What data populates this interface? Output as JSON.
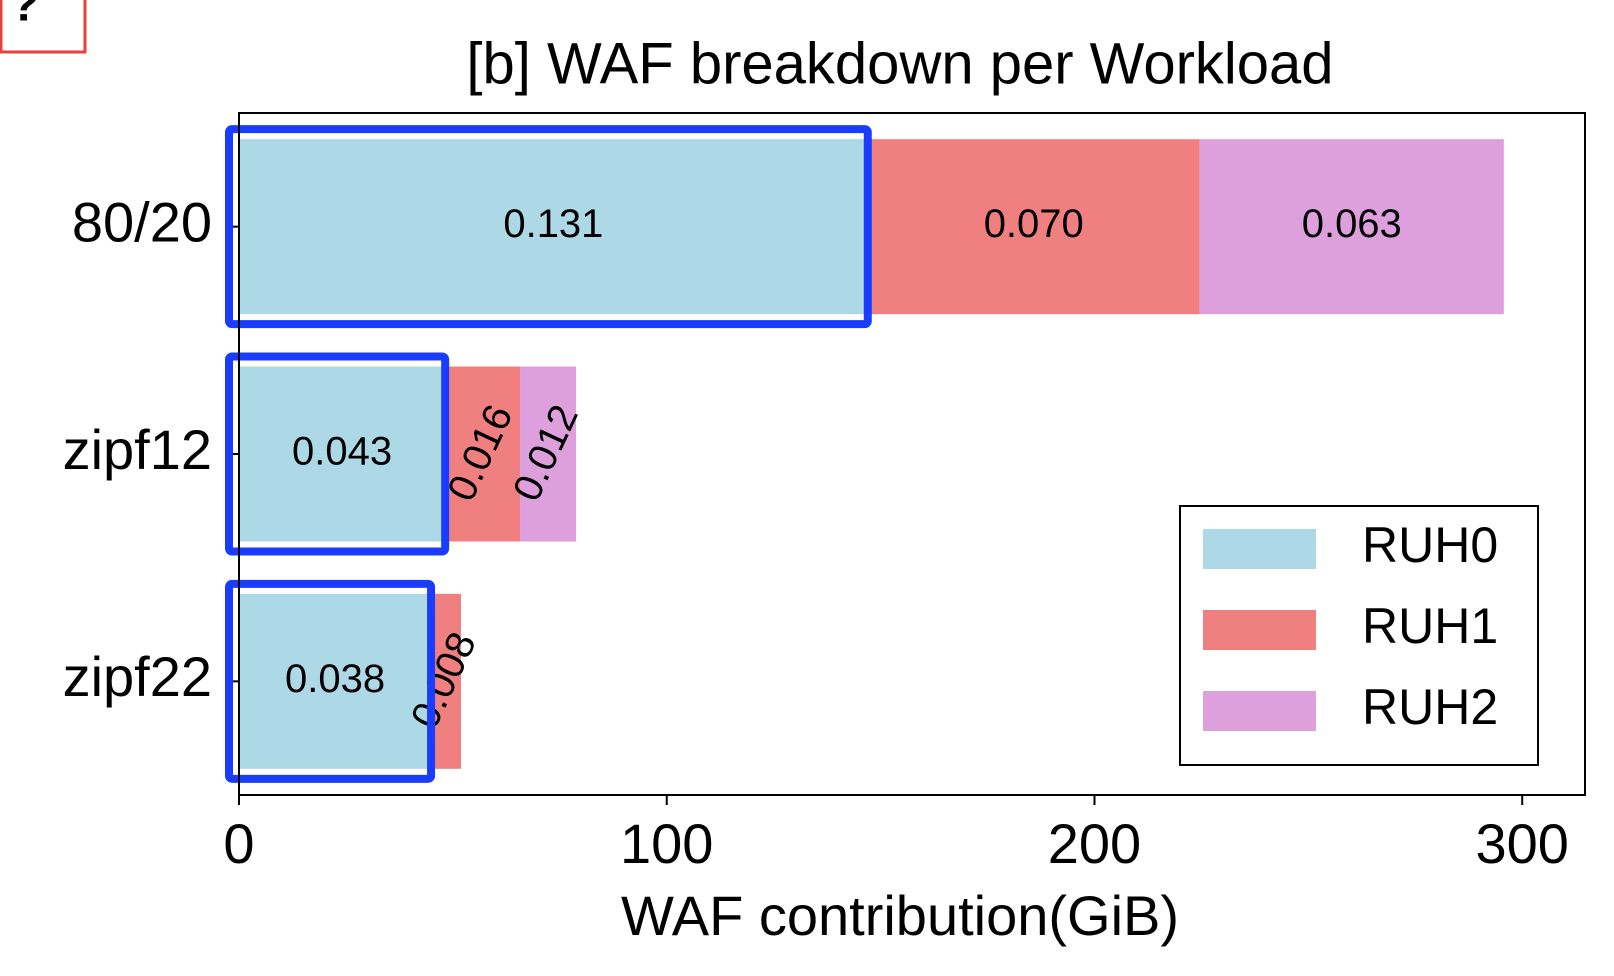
{
  "corner_label": "?",
  "chart_data": {
    "type": "stacked-barh",
    "title": "[b] WAF breakdown per Workload",
    "x_label": "WAF contribution(GiB)",
    "categories": [
      "80/20",
      "zipf12",
      "zipf22"
    ],
    "series": [
      {
        "name": "RUH0",
        "color": "#add8e6",
        "values": [
          147,
          48.2,
          44.9
        ],
        "bar_labels": [
          "0.131",
          "0.043",
          "0.038"
        ]
      },
      {
        "name": "RUH1",
        "color": "#f08080",
        "values": [
          77.6,
          17.5,
          7.0
        ],
        "bar_labels": [
          "0.070",
          "0.016",
          "0.008"
        ]
      },
      {
        "name": "RUH2",
        "color": "#dda0dd",
        "values": [
          71.1,
          13.1,
          null
        ],
        "bar_labels": [
          "0.063",
          "0.012",
          null
        ]
      }
    ],
    "xlim": [
      0,
      310
    ],
    "xticks": [
      0,
      100,
      200,
      300
    ],
    "legend": "lower right",
    "highlight_series": 0
  }
}
